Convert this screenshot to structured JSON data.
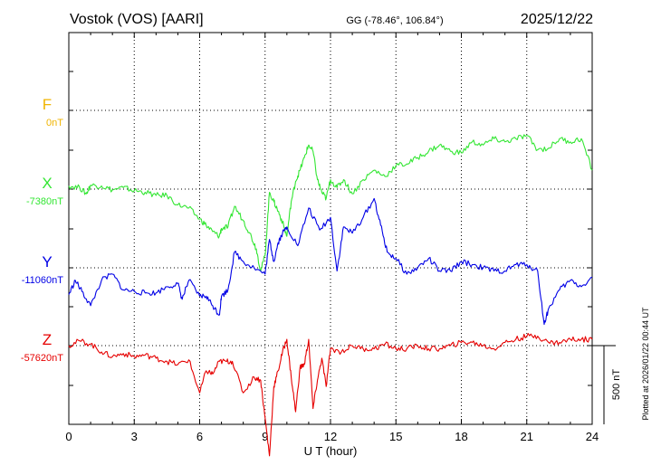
{
  "header": {
    "station": "Vostok (VOS)  [AARI]",
    "coords": "GG (-78.46°, 106.84°)",
    "date": "2025/12/22"
  },
  "side_note": "Plotted at 2026/01/22 00:44 UT",
  "scale_label": "500 nT",
  "chart_data": {
    "type": "line",
    "xlabel": "U T (hour)",
    "xlim": [
      0,
      24
    ],
    "xticks": [
      "0",
      "3",
      "6",
      "9",
      "12",
      "15",
      "18",
      "21",
      "24"
    ],
    "grid": true,
    "scale_nT_per_major_division": 500,
    "series": [
      {
        "name": "F",
        "color": "#f0b400",
        "baseline_label": "0nT",
        "baseline_nT": 0,
        "x": [],
        "y": []
      },
      {
        "name": "X",
        "color": "#33e633",
        "baseline_label": "-7380nT",
        "baseline_nT": -7380,
        "x": [
          0,
          0.5,
          0.8,
          1.0,
          1.5,
          2.0,
          2.5,
          3.0,
          3.5,
          4.0,
          4.5,
          5.0,
          5.5,
          6.0,
          6.3,
          6.6,
          6.9,
          7.0,
          7.3,
          7.6,
          8.0,
          8.3,
          8.6,
          8.8,
          9.0,
          9.2,
          9.4,
          9.6,
          9.8,
          10.0,
          10.2,
          10.4,
          10.6,
          10.8,
          11.0,
          11.2,
          11.4,
          11.6,
          11.8,
          12.0,
          12.3,
          12.6,
          13.0,
          13.5,
          14.0,
          14.5,
          15.0,
          15.5,
          16.0,
          16.5,
          17.0,
          17.5,
          18.0,
          18.5,
          19.0,
          19.5,
          20.0,
          20.5,
          21.0,
          21.5,
          22.0,
          22.5,
          23.0,
          23.5,
          24.0
        ],
        "y": [
          20,
          10,
          -30,
          25,
          20,
          -5,
          10,
          -10,
          -20,
          -40,
          -40,
          -100,
          -120,
          -190,
          -230,
          -270,
          -300,
          -250,
          -240,
          -110,
          -200,
          -280,
          -380,
          -520,
          -420,
          -20,
          -80,
          -140,
          -210,
          -300,
          -80,
          50,
          120,
          200,
          280,
          240,
          60,
          -20,
          -60,
          60,
          10,
          60,
          -30,
          60,
          120,
          80,
          150,
          160,
          200,
          240,
          280,
          240,
          230,
          300,
          280,
          320,
          300,
          320,
          340,
          250,
          260,
          320,
          300,
          320,
          120
        ]
      },
      {
        "name": "Y",
        "color": "#0000e6",
        "baseline_label": "-11060nT",
        "baseline_nT": -11060,
        "x": [
          0,
          0.3,
          0.6,
          1.0,
          1.5,
          2.0,
          2.5,
          3.0,
          3.5,
          4.0,
          4.5,
          5.0,
          5.2,
          5.5,
          6.0,
          6.3,
          6.6,
          6.9,
          7.0,
          7.3,
          7.6,
          8.0,
          8.5,
          9.0,
          9.2,
          9.4,
          9.6,
          9.8,
          10.0,
          10.5,
          11.0,
          11.5,
          12.0,
          12.3,
          12.6,
          13.0,
          13.5,
          14.0,
          14.3,
          14.6,
          15.0,
          15.5,
          16.0,
          16.5,
          17.0,
          17.5,
          18.0,
          18.5,
          19.0,
          19.5,
          20.0,
          20.5,
          21.0,
          21.5,
          21.8,
          22.0,
          22.5,
          23.0,
          23.5,
          24.0
        ],
        "y": [
          -170,
          -80,
          -150,
          -240,
          -80,
          -40,
          -140,
          -150,
          -160,
          -160,
          -120,
          -100,
          -200,
          -80,
          -180,
          -180,
          -240,
          -300,
          -180,
          -140,
          100,
          40,
          0,
          -40,
          180,
          40,
          160,
          220,
          260,
          140,
          380,
          240,
          320,
          -20,
          260,
          220,
          320,
          440,
          270,
          100,
          60,
          -40,
          0,
          60,
          -20,
          -20,
          40,
          20,
          0,
          -20,
          -20,
          20,
          20,
          -20,
          -360,
          -260,
          -140,
          -80,
          -120,
          -60
        ]
      },
      {
        "name": "Z",
        "color": "#e60000",
        "baseline_label": "-57620nT",
        "baseline_nT": -57620,
        "x": [
          0,
          0.5,
          1.0,
          1.5,
          2.0,
          2.5,
          3.0,
          3.5,
          4.0,
          4.5,
          5.0,
          5.5,
          6.0,
          6.3,
          6.6,
          6.9,
          7.2,
          7.5,
          8.0,
          8.5,
          8.8,
          9.0,
          9.2,
          9.4,
          9.6,
          9.8,
          10.0,
          10.2,
          10.4,
          10.6,
          10.8,
          11.0,
          11.2,
          11.4,
          11.6,
          11.8,
          12.0,
          12.5,
          13.0,
          13.5,
          14.0,
          14.5,
          15.0,
          15.5,
          16.0,
          16.5,
          17.0,
          17.5,
          18.0,
          18.5,
          19.0,
          19.5,
          20.0,
          20.5,
          21.0,
          21.5,
          22.0,
          22.5,
          23.0,
          23.5,
          24.0
        ],
        "y": [
          0,
          30,
          10,
          -40,
          -70,
          -50,
          -70,
          -60,
          -80,
          -100,
          -120,
          -90,
          -300,
          -160,
          -180,
          -100,
          -100,
          -100,
          -300,
          -200,
          -220,
          -460,
          -700,
          -260,
          -160,
          -40,
          40,
          -200,
          -420,
          -140,
          -120,
          40,
          -400,
          -220,
          -80,
          -260,
          -20,
          -40,
          0,
          -20,
          -20,
          10,
          -20,
          -20,
          0,
          -20,
          -20,
          0,
          20,
          20,
          0,
          -20,
          20,
          40,
          60,
          60,
          20,
          20,
          40,
          40,
          40
        ]
      }
    ]
  }
}
